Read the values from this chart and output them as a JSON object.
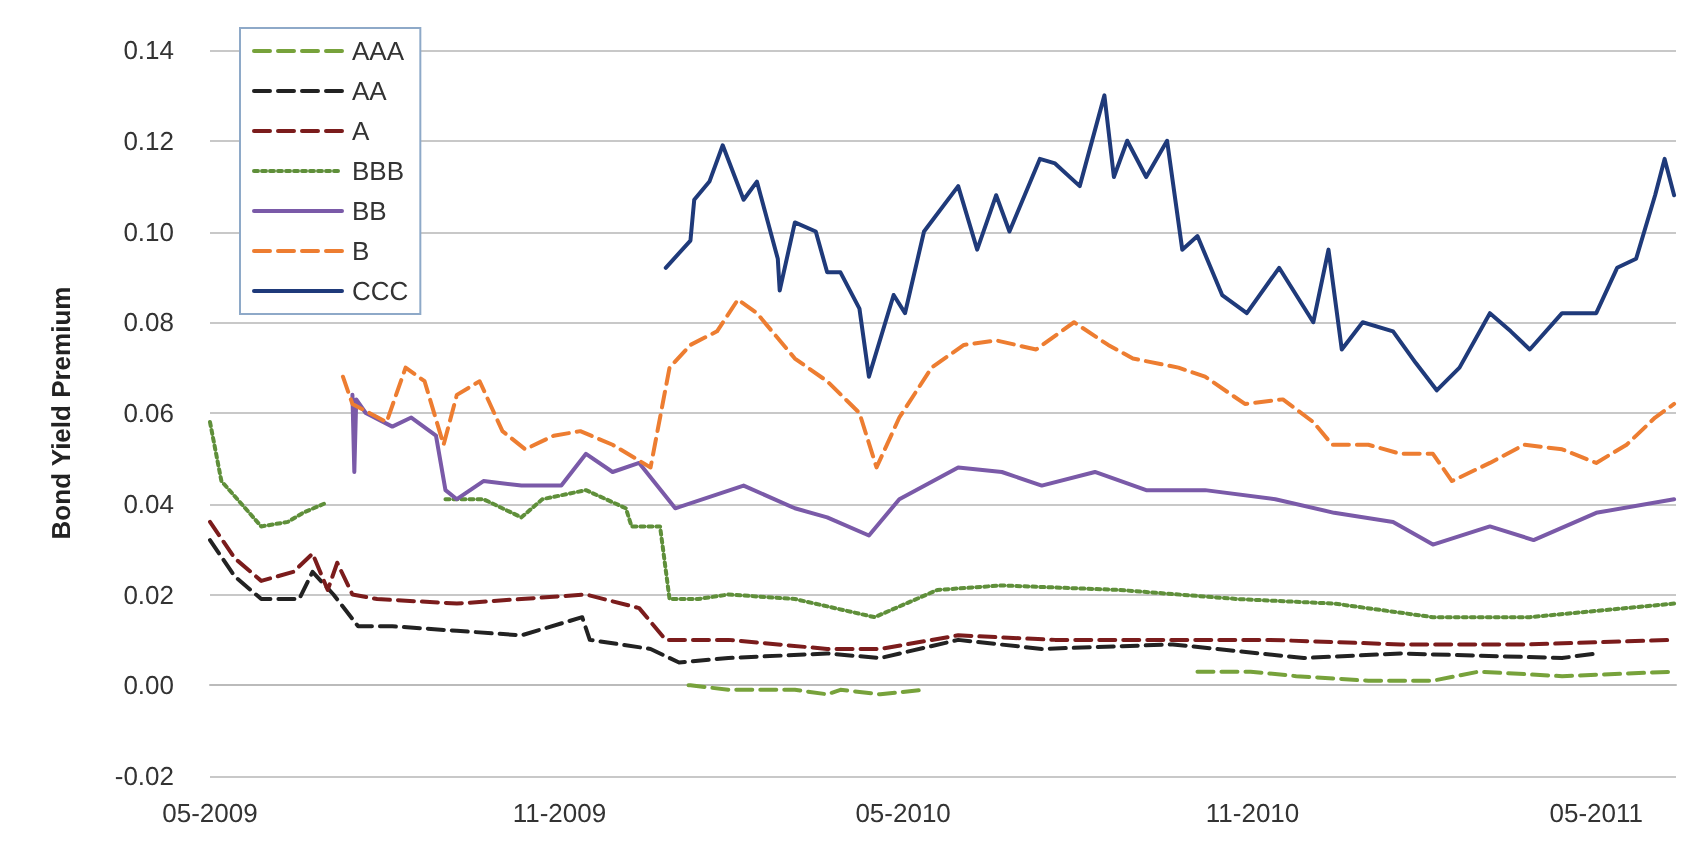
{
  "chart_data": {
    "type": "line",
    "ylabel": "Bond Yield Premium",
    "xlim": [
      "2009-05-01",
      "2011-06-12"
    ],
    "ylim": [
      -0.02,
      0.14
    ],
    "xticks": [
      {
        "value": "2009-05-01",
        "label": "05-2009"
      },
      {
        "value": "2009-11-01",
        "label": "11-2009"
      },
      {
        "value": "2010-05-01",
        "label": "05-2010"
      },
      {
        "value": "2010-11-01",
        "label": "11-2010"
      },
      {
        "value": "2011-05-01",
        "label": "05-2011"
      }
    ],
    "yticks": [
      {
        "value": -0.02,
        "label": "-0.02"
      },
      {
        "value": 0,
        "label": "0.00"
      },
      {
        "value": 0.02,
        "label": "0.02"
      },
      {
        "value": 0.04,
        "label": "0.04"
      },
      {
        "value": 0.06,
        "label": "0.06"
      },
      {
        "value": 0.08,
        "label": "0.08"
      },
      {
        "value": 0.1,
        "label": "0.10"
      },
      {
        "value": 0.12,
        "label": "0.12"
      },
      {
        "value": 0.14,
        "label": "0.14"
      }
    ],
    "grid": "y",
    "legend": "top left",
    "marker": "none",
    "series": [
      {
        "name": "AAA",
        "color": "#77a23b",
        "line_style": "dashed",
        "x": [
          "2010-01-08",
          "2010-01-09",
          "2010-01-29",
          "2010-03-05",
          "2010-03-22",
          "2010-03-29",
          "2010-04-19",
          "2010-05-12",
          "2010-07-01",
          "2010-10-03",
          "2010-10-31",
          "2010-11-24",
          "2011-01-01",
          "2011-02-04",
          "2011-02-28",
          "2011-04-13",
          "2011-06-11"
        ],
        "values": [
          0.0,
          0.0,
          -0.001,
          -0.001,
          -0.002,
          -0.001,
          -0.002,
          -0.001,
          null,
          0.003,
          0.003,
          0.002,
          0.001,
          0.001,
          0.003,
          0.002,
          0.003
        ]
      },
      {
        "name": "AA",
        "color": "#222222",
        "line_style": "dashed",
        "x": [
          "2009-05-01",
          "2009-05-14",
          "2009-05-28",
          "2009-06-17",
          "2009-06-24",
          "2009-07-05",
          "2009-07-18",
          "2009-08-05",
          "2009-09-08",
          "2009-10-12",
          "2009-11-13",
          "2009-11-17",
          "2009-12-19",
          "2010-01-03",
          "2010-01-29",
          "2010-03-22",
          "2010-04-19",
          "2010-05-30",
          "2010-07-13",
          "2010-09-20",
          "2010-11-28",
          "2011-01-18",
          "2011-04-13",
          "2011-05-01"
        ],
        "values": [
          0.032,
          0.024,
          0.019,
          0.019,
          0.025,
          0.02,
          0.013,
          0.013,
          0.012,
          0.011,
          0.015,
          0.01,
          0.008,
          0.005,
          0.006,
          0.007,
          0.006,
          0.01,
          0.008,
          0.009,
          0.006,
          0.007,
          0.006,
          0.007
        ]
      },
      {
        "name": "A",
        "color": "#7b1c1c",
        "line_style": "dashed",
        "x": [
          "2009-05-01",
          "2009-05-14",
          "2009-05-28",
          "2009-06-14",
          "2009-06-24",
          "2009-07-02",
          "2009-07-07",
          "2009-07-15",
          "2009-07-28",
          "2009-09-08",
          "2009-10-12",
          "2009-11-15",
          "2009-12-13",
          "2009-12-27",
          "2010-01-29",
          "2010-03-22",
          "2010-04-19",
          "2010-05-30",
          "2010-07-20",
          "2010-09-20",
          "2010-11-10",
          "2011-01-18",
          "2011-03-27",
          "2011-06-11"
        ],
        "values": [
          0.036,
          0.028,
          0.023,
          0.025,
          0.029,
          0.021,
          0.027,
          0.02,
          0.019,
          0.018,
          0.019,
          0.02,
          0.017,
          0.01,
          0.01,
          0.008,
          0.008,
          0.011,
          0.01,
          0.01,
          0.01,
          0.009,
          0.009,
          0.01
        ]
      },
      {
        "name": "BBB",
        "color": "#5f8f3a",
        "line_style": "dotted",
        "x": [
          "2009-05-01",
          "2009-05-07",
          "2009-05-28",
          "2009-06-11",
          "2009-06-19",
          "2009-06-30",
          "2009-07-15",
          "2009-09-02",
          "2009-09-22",
          "2009-10-12",
          "2009-10-23",
          "2009-11-15",
          "2009-12-06",
          "2009-12-09",
          "2009-12-24",
          "2009-12-29",
          "2010-01-13",
          "2010-01-29",
          "2010-03-05",
          "2010-04-16",
          "2010-05-19",
          "2010-06-22",
          "2010-08-23",
          "2010-10-24",
          "2010-12-14",
          "2011-02-04",
          "2011-03-27",
          "2011-06-11"
        ],
        "values": [
          0.058,
          0.045,
          0.035,
          0.036,
          0.038,
          0.04,
          null,
          0.041,
          0.041,
          0.037,
          0.041,
          0.043,
          0.039,
          0.035,
          0.035,
          0.019,
          0.019,
          0.02,
          0.019,
          0.015,
          0.021,
          0.022,
          0.021,
          0.019,
          0.018,
          0.015,
          0.015,
          0.018
        ]
      },
      {
        "name": "BB",
        "color": "#7a5aa8",
        "line_style": "solid",
        "x": [
          "2009-07-15",
          "2009-07-16",
          "2009-07-17",
          "2009-07-22",
          "2009-08-05",
          "2009-08-15",
          "2009-08-28",
          "2009-09-02",
          "2009-09-08",
          "2009-09-22",
          "2009-10-12",
          "2009-11-02",
          "2009-11-15",
          "2009-11-29",
          "2009-12-13",
          "2010-01-01",
          "2010-02-06",
          "2010-03-05",
          "2010-03-22",
          "2010-04-13",
          "2010-04-29",
          "2010-05-30",
          "2010-06-22",
          "2010-07-13",
          "2010-08-10",
          "2010-09-06",
          "2010-10-07",
          "2010-11-13",
          "2010-12-14",
          "2011-01-14",
          "2011-02-04",
          "2011-03-06",
          "2011-03-29",
          "2011-05-01",
          "2011-06-11"
        ],
        "values": [
          0.064,
          0.047,
          0.063,
          0.06,
          0.057,
          0.059,
          0.055,
          0.043,
          0.041,
          0.045,
          0.044,
          0.044,
          0.051,
          0.047,
          0.049,
          0.039,
          0.044,
          0.039,
          0.037,
          0.033,
          0.041,
          0.048,
          0.047,
          0.044,
          0.047,
          0.043,
          0.043,
          0.041,
          0.038,
          0.036,
          0.031,
          0.035,
          0.032,
          0.038,
          0.041
        ]
      },
      {
        "name": "B",
        "color": "#ed7d31",
        "line_style": "dashed",
        "x": [
          "2009-07-10",
          "2009-07-15",
          "2009-08-02",
          "2009-08-12",
          "2009-08-22",
          "2009-09-01",
          "2009-09-08",
          "2009-09-20",
          "2009-10-02",
          "2009-10-14",
          "2009-10-29",
          "2009-11-12",
          "2009-11-29",
          "2009-12-19",
          "2009-12-29",
          "2010-01-09",
          "2010-01-23",
          "2010-02-03",
          "2010-02-13",
          "2010-03-05",
          "2010-03-22",
          "2010-04-08",
          "2010-04-17",
          "2010-04-29",
          "2010-05-16",
          "2010-06-02",
          "2010-06-19",
          "2010-07-10",
          "2010-07-30",
          "2010-08-17",
          "2010-08-30",
          "2010-09-23",
          "2010-10-07",
          "2010-10-28",
          "2010-11-17",
          "2010-12-03",
          "2010-12-13",
          "2011-01-01",
          "2011-01-18",
          "2011-02-04",
          "2011-02-14",
          "2011-03-06",
          "2011-03-24",
          "2011-04-13",
          "2011-05-01",
          "2011-05-17",
          "2011-06-01",
          "2011-06-11"
        ],
        "values": [
          0.068,
          0.062,
          0.058,
          0.07,
          0.067,
          0.053,
          0.064,
          0.067,
          0.056,
          0.052,
          0.055,
          0.056,
          0.053,
          0.048,
          0.07,
          0.075,
          0.078,
          0.085,
          0.082,
          0.072,
          0.067,
          0.06,
          0.048,
          0.059,
          0.07,
          0.075,
          0.076,
          0.074,
          0.08,
          0.075,
          0.072,
          0.07,
          0.068,
          0.062,
          0.063,
          0.058,
          0.053,
          0.053,
          0.051,
          0.051,
          0.045,
          0.049,
          0.053,
          0.052,
          0.049,
          0.053,
          0.059,
          0.062
        ]
      },
      {
        "name": "CCC",
        "color": "#1f3a7a",
        "line_style": "solid",
        "x": [
          "2009-12-27",
          "2010-01-09",
          "2010-01-11",
          "2010-01-19",
          "2010-01-26",
          "2010-02-06",
          "2010-02-13",
          "2010-02-24",
          "2010-02-25",
          "2010-03-05",
          "2010-03-16",
          "2010-03-22",
          "2010-03-29",
          "2010-04-08",
          "2010-04-13",
          "2010-04-26",
          "2010-05-02",
          "2010-05-12",
          "2010-05-30",
          "2010-06-09",
          "2010-06-19",
          "2010-06-26",
          "2010-07-12",
          "2010-07-20",
          "2010-08-02",
          "2010-08-15",
          "2010-08-20",
          "2010-08-27",
          "2010-09-06",
          "2010-09-17",
          "2010-09-25",
          "2010-10-03",
          "2010-10-16",
          "2010-10-29",
          "2010-11-15",
          "2010-12-03",
          "2010-12-11",
          "2010-12-18",
          "2010-12-29",
          "2011-01-14",
          "2011-01-26",
          "2011-02-06",
          "2011-02-18",
          "2011-03-06",
          "2011-03-17",
          "2011-03-27",
          "2011-04-13",
          "2011-05-01",
          "2011-05-12",
          "2011-05-22",
          "2011-06-01",
          "2011-06-06",
          "2011-06-11"
        ],
        "values": [
          0.092,
          0.098,
          0.107,
          0.111,
          0.119,
          0.107,
          0.111,
          0.094,
          0.087,
          0.102,
          0.1,
          0.091,
          0.091,
          0.083,
          0.068,
          0.086,
          0.082,
          0.1,
          0.11,
          0.096,
          0.108,
          0.1,
          0.116,
          0.115,
          0.11,
          0.13,
          0.112,
          0.12,
          0.112,
          0.12,
          0.096,
          0.099,
          0.086,
          0.082,
          0.092,
          0.08,
          0.096,
          0.074,
          0.08,
          0.078,
          0.071,
          0.065,
          0.07,
          0.082,
          0.078,
          0.074,
          0.082,
          0.082,
          0.092,
          0.094,
          0.108,
          0.116,
          0.108
        ]
      }
    ]
  }
}
